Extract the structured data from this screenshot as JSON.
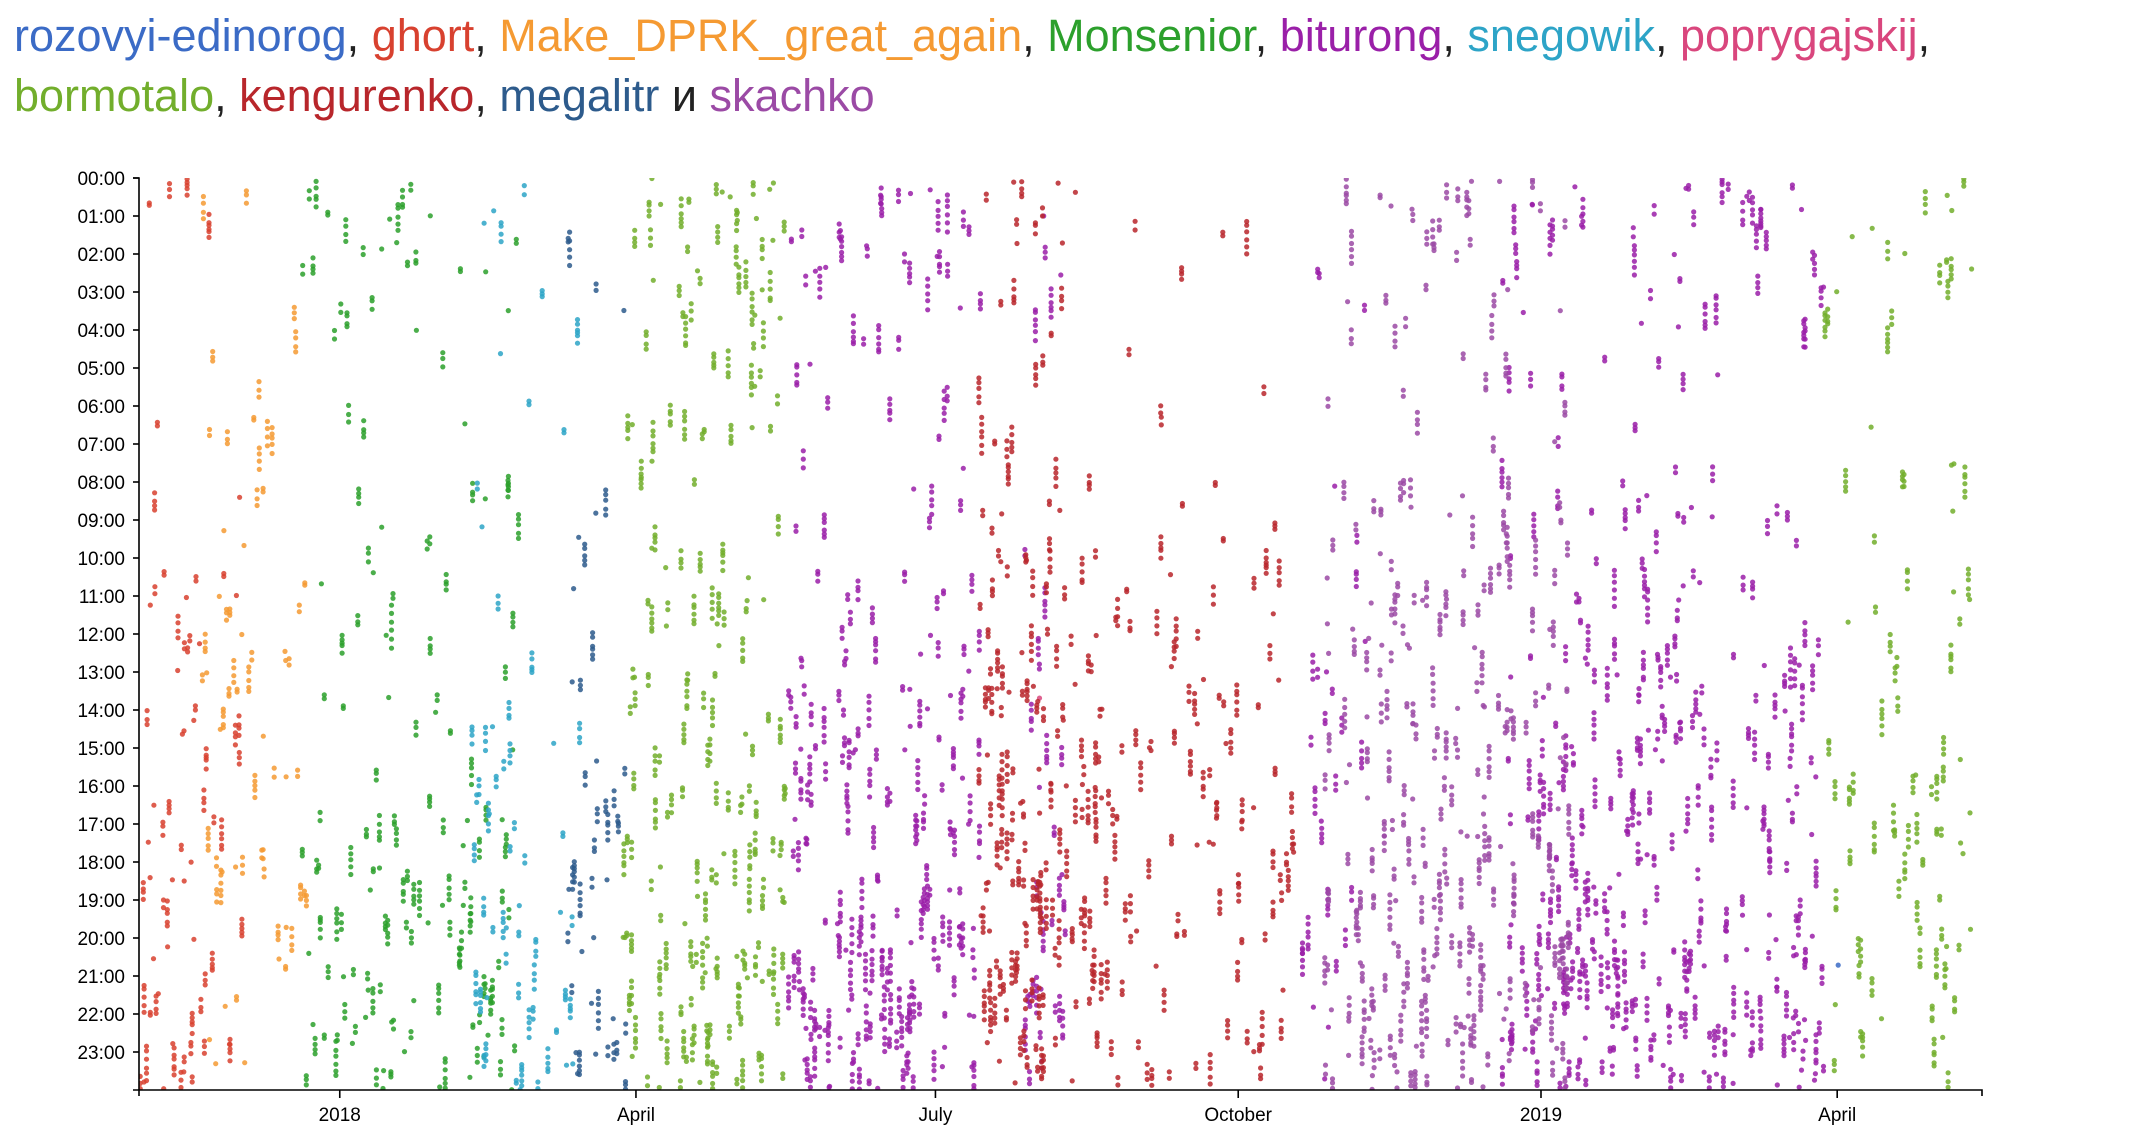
{
  "legend": {
    "separator": ", ",
    "conjunction": " и ",
    "trailing": ","
  },
  "chart_data": {
    "type": "scatter",
    "title": "",
    "xlabel": "",
    "ylabel": "",
    "x_range": [
      "2017-11-01",
      "2019-05-15"
    ],
    "y_range": [
      "00:00",
      "23:59"
    ],
    "y_reversed": true,
    "grid": false,
    "legend_placement": "top",
    "x_ticks": [
      {
        "date": "2018-01-01",
        "label": "2018"
      },
      {
        "date": "2018-04-01",
        "label": "April"
      },
      {
        "date": "2018-07-01",
        "label": "July"
      },
      {
        "date": "2018-10-01",
        "label": "October"
      },
      {
        "date": "2019-01-01",
        "label": "2019"
      },
      {
        "date": "2019-04-01",
        "label": "April"
      }
    ],
    "y_ticks": [
      "00:00",
      "01:00",
      "02:00",
      "03:00",
      "04:00",
      "05:00",
      "06:00",
      "07:00",
      "08:00",
      "09:00",
      "10:00",
      "11:00",
      "12:00",
      "13:00",
      "14:00",
      "15:00",
      "16:00",
      "17:00",
      "18:00",
      "19:00",
      "20:00",
      "21:00",
      "22:00",
      "23:00"
    ],
    "series": [
      {
        "name": "rozovyi-edinorog",
        "color": "#3b6bc6",
        "periods": [
          {
            "start": "2019-04-01",
            "end": "2019-04-02",
            "density": 0.2
          }
        ],
        "hour_weights": [
          0,
          0,
          0,
          0,
          0,
          0,
          0,
          0,
          0,
          0,
          0,
          0,
          0,
          0,
          0,
          0,
          0,
          0,
          0,
          0,
          1,
          0,
          0,
          0
        ]
      },
      {
        "name": "ghort",
        "color": "#d8412f",
        "periods": [
          {
            "start": "2017-11-01",
            "end": "2017-12-03",
            "density": 7
          }
        ],
        "hour_weights": [
          1,
          0.5,
          0.3,
          0.2,
          0.2,
          0.2,
          0.3,
          0.3,
          1,
          1,
          1.2,
          1.5,
          2,
          1.5,
          1.5,
          1.2,
          1.5,
          1.2,
          1.5,
          2,
          3,
          3,
          3,
          2.5
        ]
      },
      {
        "name": "Make_DPRK_great_again",
        "color": "#f59a32",
        "periods": [
          {
            "start": "2017-11-20",
            "end": "2017-12-22",
            "density": 5
          }
        ],
        "hour_weights": [
          0.5,
          0.3,
          0.3,
          0.3,
          1.5,
          2,
          2,
          1,
          1,
          1.2,
          2,
          2,
          2.5,
          3,
          3,
          2.5,
          2.5,
          2.5,
          3,
          3,
          3,
          2.5,
          2.5,
          2
        ]
      },
      {
        "name": "Monsenior",
        "color": "#2ca02c",
        "periods": [
          {
            "start": "2017-12-20",
            "end": "2018-02-25",
            "density": 7
          }
        ],
        "hour_weights": [
          3,
          2.5,
          1.5,
          1,
          0.8,
          0.3,
          0.3,
          1,
          1,
          0.8,
          1.2,
          1.5,
          1.5,
          1.2,
          1,
          1.2,
          2,
          2,
          2.5,
          2.5,
          3,
          3,
          3.5,
          3
        ]
      },
      {
        "name": "biturong",
        "color": "#9a1fa8",
        "periods": [
          {
            "start": "2018-05-17",
            "end": "2018-07-15",
            "density": 14
          },
          {
            "start": "2018-07-28",
            "end": "2018-08-10",
            "density": 10
          },
          {
            "start": "2018-10-20",
            "end": "2018-11-10",
            "density": 5
          },
          {
            "start": "2018-12-20",
            "end": "2019-03-28",
            "density": 13
          }
        ],
        "hour_weights": [
          2,
          2,
          1.5,
          1,
          0.8,
          0.5,
          0.5,
          0.5,
          1,
          1,
          1.2,
          1.5,
          2,
          2,
          2,
          2,
          2.5,
          2.5,
          2.5,
          3,
          3.5,
          4,
          4,
          3.5
        ]
      },
      {
        "name": "snegowik",
        "color": "#2da4c7",
        "periods": [
          {
            "start": "2018-02-10",
            "end": "2018-03-15",
            "density": 7
          }
        ],
        "hour_weights": [
          1.5,
          1.5,
          1,
          0.5,
          0.3,
          0.5,
          0.5,
          1,
          1,
          1,
          1.2,
          1.2,
          1.2,
          1.5,
          1.5,
          2,
          2,
          2,
          2,
          2,
          2.5,
          2.5,
          2.5,
          2.5
        ]
      },
      {
        "name": "poprygajskij",
        "color": "#d9467d",
        "periods": [
          {
            "start": "2018-08-01",
            "end": "2018-08-02",
            "density": 0.5
          }
        ],
        "hour_weights": [
          0,
          0,
          0,
          0,
          0,
          0,
          0,
          0,
          0,
          0,
          0,
          0,
          0,
          1,
          0,
          0,
          0,
          0,
          0,
          0,
          0,
          0,
          0,
          0
        ]
      },
      {
        "name": "bormotalo",
        "color": "#72ae2c",
        "periods": [
          {
            "start": "2018-03-28",
            "end": "2018-05-17",
            "density": 15
          },
          {
            "start": "2019-03-28",
            "end": "2019-05-12",
            "density": 9
          }
        ],
        "hour_weights": [
          3,
          3,
          2.5,
          2,
          1,
          1,
          1.5,
          1,
          1,
          1.5,
          2,
          2.5,
          2,
          2,
          2,
          2,
          2.5,
          2.5,
          2.5,
          3,
          3.5,
          3.5,
          3,
          2.5
        ]
      },
      {
        "name": "kengurenko",
        "color": "#b8262b",
        "periods": [
          {
            "start": "2018-07-14",
            "end": "2018-08-20",
            "density": 16
          },
          {
            "start": "2018-08-20",
            "end": "2018-10-18",
            "density": 7
          }
        ],
        "hour_weights": [
          1.5,
          1.5,
          1.5,
          1,
          0.8,
          0.8,
          0.8,
          1,
          1.2,
          1.5,
          1.5,
          1.5,
          2,
          2.5,
          2.5,
          2.5,
          2.5,
          2.5,
          2.5,
          3,
          3,
          3,
          3,
          2.5
        ]
      },
      {
        "name": "megalitr",
        "color": "#2d5b8c",
        "periods": [
          {
            "start": "2018-03-10",
            "end": "2018-03-29",
            "density": 7
          }
        ],
        "hour_weights": [
          1,
          0.5,
          0.2,
          0.2,
          0.2,
          0.2,
          0.2,
          0.5,
          1,
          1,
          0.8,
          0.5,
          0.5,
          0.5,
          0.8,
          1.5,
          3,
          3,
          2.5,
          2,
          2,
          3,
          3,
          2.5
        ]
      },
      {
        "name": "skachko",
        "color": "#9b4aa5",
        "periods": [
          {
            "start": "2018-10-25",
            "end": "2019-01-10",
            "density": 14
          }
        ],
        "hour_weights": [
          1.5,
          1.5,
          1,
          0.8,
          0.5,
          0.5,
          0.5,
          1,
          1.5,
          1.5,
          2,
          2,
          2,
          2,
          2,
          2,
          3,
          3,
          3,
          3,
          3,
          3,
          3,
          3
        ]
      }
    ]
  }
}
